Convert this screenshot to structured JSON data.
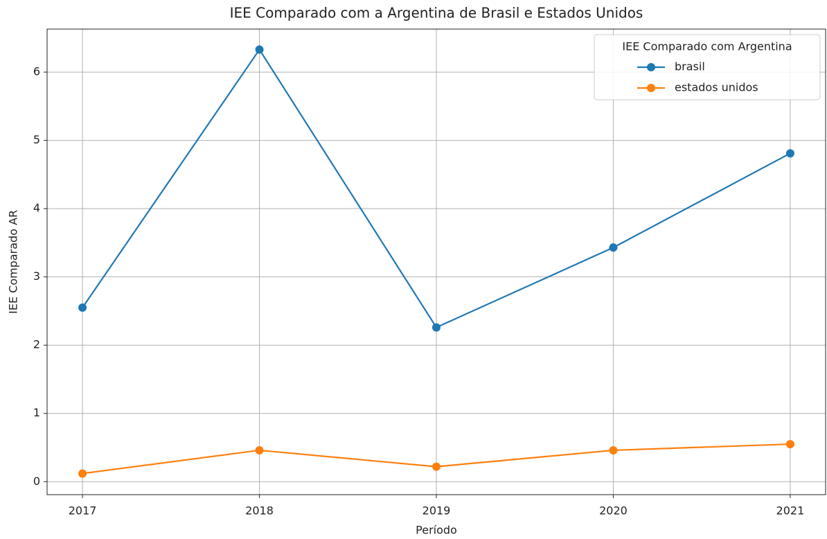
{
  "chart_data": {
    "type": "line",
    "title": "IEE Comparado com a Argentina de Brasil e Estados Unidos",
    "x_label": "Período",
    "y_label": "IEE Comparado AR",
    "x": [
      2017,
      2018,
      2019,
      2020,
      2021
    ],
    "series": [
      {
        "name": "brasil",
        "color": "#1f77b4",
        "values": [
          2.55,
          6.33,
          2.26,
          3.43,
          4.81
        ]
      },
      {
        "name": "estados unidos",
        "color": "#ff7f0e",
        "values": [
          0.12,
          0.46,
          0.22,
          0.46,
          0.55
        ]
      }
    ],
    "xlim": [
      2016.8,
      2021.2
    ],
    "xticks": [
      2017,
      2018,
      2019,
      2020,
      2021
    ],
    "ylim": [
      -0.19,
      6.63
    ],
    "yticks": [
      0,
      1,
      2,
      3,
      4,
      5,
      6
    ],
    "grid": true,
    "legend_title": "IEE Comparado com Argentina",
    "legend_position": "upper-right"
  }
}
